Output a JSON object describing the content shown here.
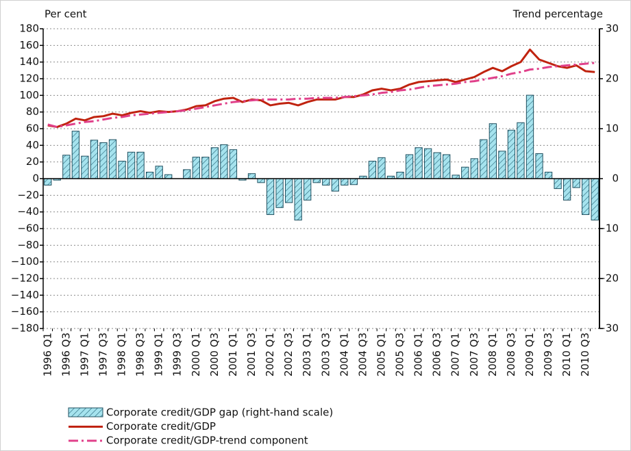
{
  "chart_data": {
    "type": "combo",
    "y_label": "Per cent",
    "y2_label": "Trend percentage",
    "categories": [
      "1996 Q1",
      null,
      "1996 Q3",
      null,
      "1997 Q1",
      null,
      "1997 Q3",
      null,
      "1998 Q1",
      null,
      "1998 Q3",
      null,
      "1999 Q1",
      null,
      "1999 Q3",
      null,
      "2000 Q1",
      null,
      "2000 Q3",
      null,
      "2001 Q1",
      null,
      "2001 Q3",
      null,
      "2002 Q1",
      null,
      "2002 Q3",
      null,
      "2003 Q1",
      null,
      "2003 Q3",
      null,
      "2004 Q1",
      null,
      "2004 Q3",
      null,
      "2005 Q1",
      null,
      "2005 Q3",
      null,
      "2006 Q1",
      null,
      "2006 Q3",
      null,
      "2007 Q1",
      null,
      "2007 Q3",
      null,
      "2008 Q1",
      null,
      "2008 Q3",
      null,
      "2009 Q1",
      null,
      "2009 Q3",
      null,
      "2010 Q1",
      null,
      "2010 Q3",
      null
    ],
    "series": [
      {
        "name": "Corporate credit/GDP gap (right-hand scale)",
        "type": "bar",
        "axis": "y2",
        "color": "#a6e3ee",
        "values": [
          -1.3,
          -0.3,
          4.7,
          9.5,
          4.5,
          7.7,
          7.2,
          7.8,
          3.5,
          5.3,
          5.3,
          1.3,
          2.5,
          0.8,
          0,
          1.8,
          4.3,
          4.3,
          6.2,
          6.8,
          5.8,
          -0.3,
          1.0,
          -0.8,
          -7.2,
          -5.8,
          -4.8,
          -8.3,
          -4.3,
          -0.8,
          -1.3,
          -2.5,
          -1.3,
          -1.2,
          0.5,
          3.5,
          4.2,
          0.5,
          1.3,
          4.8,
          6.2,
          6.0,
          5.2,
          4.8,
          0.7,
          2.3,
          4.0,
          7.8,
          11.0,
          5.5,
          9.7,
          11.2,
          16.7,
          5.0,
          1.3,
          -2.0,
          -4.3,
          -1.8,
          -7.2,
          -8.3
        ]
      },
      {
        "name": "Corporate credit/GDP",
        "type": "line",
        "color": "#c0230f",
        "style": "solid",
        "values": [
          64,
          62,
          66,
          72,
          70,
          74,
          75,
          78,
          76,
          79,
          81,
          79,
          81,
          80,
          81,
          83,
          87,
          88,
          93,
          96,
          97,
          92,
          95,
          94,
          88,
          90,
          91,
          88,
          92,
          95,
          95,
          95,
          98,
          98,
          101,
          106,
          108,
          106,
          108,
          113,
          116,
          117,
          118,
          119,
          116,
          119,
          122,
          128,
          133,
          129,
          135,
          140,
          155,
          143,
          139,
          135,
          133,
          136,
          129,
          128
        ]
      },
      {
        "name": "Corporate credit/GDP-trend component",
        "type": "line",
        "color": "#e0408a",
        "style": "dashdot",
        "values": [
          65,
          62,
          64,
          66,
          68,
          69,
          71,
          73,
          74,
          76,
          77,
          78,
          79,
          80,
          81,
          82,
          84,
          86,
          88,
          90,
          92,
          93,
          94,
          95,
          95,
          95,
          95,
          96,
          96,
          97,
          97,
          97,
          98,
          99,
          100,
          101,
          103,
          104,
          106,
          107,
          109,
          111,
          112,
          113,
          114,
          116,
          117,
          119,
          121,
          123,
          126,
          128,
          131,
          132,
          134,
          135,
          136,
          137,
          138,
          139
        ]
      }
    ],
    "ylim": [
      -180,
      180
    ],
    "yticks": [
      {
        "value": -180,
        "label": "−180"
      },
      {
        "value": -160,
        "label": "−160"
      },
      {
        "value": -140,
        "label": "−140"
      },
      {
        "value": -120,
        "label": "−120"
      },
      {
        "value": -100,
        "label": "−100"
      },
      {
        "value": -80,
        "label": "−80"
      },
      {
        "value": -60,
        "label": "−60"
      },
      {
        "value": -40,
        "label": "−40"
      },
      {
        "value": -20,
        "label": "−20"
      },
      0,
      20,
      40,
      60,
      80,
      100,
      120,
      140,
      160,
      180
    ],
    "y2lim": [
      -30,
      30
    ],
    "y2ticks": [
      {
        "value": -30,
        "label": "−30"
      },
      {
        "value": -20,
        "label": "−20"
      },
      {
        "value": -10,
        "label": "−10"
      },
      0,
      10,
      20,
      30
    ],
    "grid": true,
    "legend": "bottom-left"
  }
}
